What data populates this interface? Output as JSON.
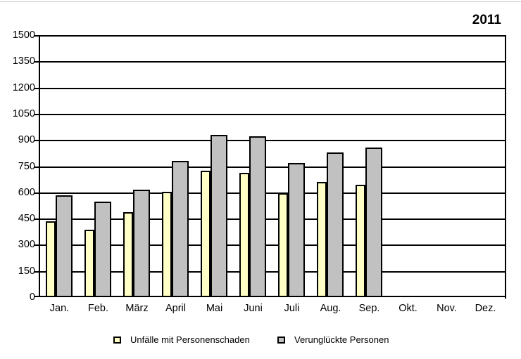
{
  "chart_data": {
    "type": "bar",
    "title": "2011",
    "categories": [
      "Jan.",
      "Feb.",
      "März",
      "April",
      "Mai",
      "Juni",
      "Juli",
      "Aug.",
      "Sep.",
      "Okt.",
      "Nov.",
      "Dez."
    ],
    "series": [
      {
        "name": "Unfälle mit Personenschaden",
        "color": "#ffffc6",
        "values": [
          435,
          385,
          485,
          605,
          725,
          710,
          595,
          660,
          645,
          null,
          null,
          null
        ]
      },
      {
        "name": "Verunglückte Personen",
        "color": "#c1c1c1",
        "values": [
          585,
          545,
          615,
          780,
          930,
          920,
          770,
          830,
          855,
          null,
          null,
          null
        ]
      }
    ],
    "xlabel": "",
    "ylabel": "",
    "ylim": [
      0,
      1500
    ],
    "ytick_step": 150,
    "grid": "horizontal",
    "gridline_color": "#000000",
    "legend_position": "bottom",
    "background": "#ffffff"
  }
}
